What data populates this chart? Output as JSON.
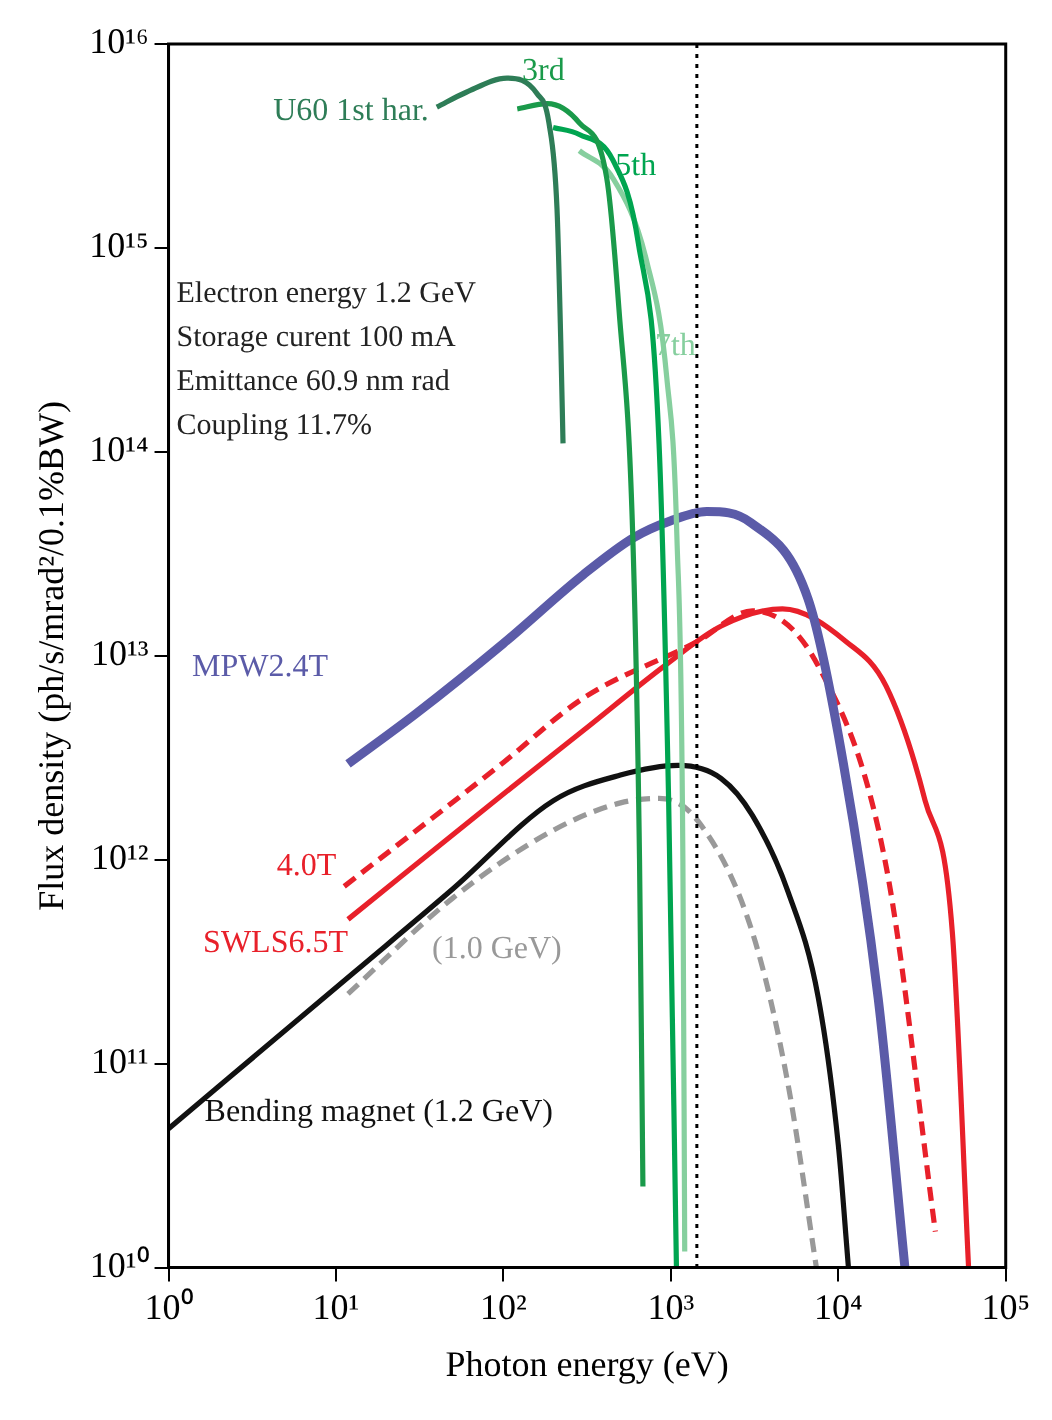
{
  "chart_data": {
    "type": "line",
    "xlabel": "Photon energy (eV)",
    "ylabel": "Flux density (ph/s/mrad²/0.1%BW)",
    "log": "xy",
    "grid": false,
    "legend": false,
    "marker": "none",
    "xlim": [
      1,
      100000
    ],
    "ylim": [
      10000000000.0,
      1e+16
    ],
    "xticks": [
      {
        "value": 1,
        "label": "10⁰"
      },
      {
        "value": 10,
        "label": "10¹"
      },
      {
        "value": 100,
        "label": "10²"
      },
      {
        "value": 1000,
        "label": "10³"
      },
      {
        "value": 10000,
        "label": "10⁴"
      },
      {
        "value": 100000,
        "label": "10⁵"
      }
    ],
    "yticks": [
      {
        "value": 10000000000.0,
        "label": "10¹⁰"
      },
      {
        "value": 100000000000.0,
        "label": "10¹¹"
      },
      {
        "value": 1000000000000.0,
        "label": "10¹²"
      },
      {
        "value": 10000000000000.0,
        "label": "10¹³"
      },
      {
        "value": 100000000000000.0,
        "label": "10¹⁴"
      },
      {
        "value": 1000000000000000.0,
        "label": "10¹⁵"
      },
      {
        "value": 1e+16,
        "label": "10¹⁶"
      }
    ],
    "ref_lines": [
      {
        "axis": "x",
        "value": 1430,
        "color": "#000000",
        "line_style": "dotted"
      }
    ],
    "annotations": [
      "Electron energy 1.2 GeV",
      "Storage curent 100 mA",
      "Emittance 60.9 nm rad",
      "Coupling 11.7%"
    ],
    "series": [
      {
        "name": "U60 1st har.",
        "color": "#2e7d57",
        "line_style": "solid",
        "x": [
          40,
          60,
          105,
          159,
          187,
          209,
          220,
          227
        ],
        "values": [
          4900000000000000.0,
          5800000000000000.0,
          6800000000000000.0,
          5700000000000000.0,
          4100000000000000.0,
          1550000000000000.0,
          350000000000000.0,
          110000000000000.0
        ]
      },
      {
        "name": "3rd",
        "color": "#1a9a4a",
        "line_style": "solid",
        "x": [
          121,
          183,
          284,
          414,
          490,
          592,
          650,
          681
        ],
        "values": [
          4800000000000000.0,
          5100000000000000.0,
          4100000000000000.0,
          2200000000000000.0,
          500000000000000.0,
          39000000000000.0,
          1000000000000.0,
          25000000000.0
        ]
      },
      {
        "name": "5th",
        "color": "#00a550",
        "line_style": "solid",
        "x": [
          198,
          284,
          450,
          640,
          850,
          970,
          1080
        ],
        "values": [
          3900000000000000.0,
          3600000000000000.0,
          2700000000000000.0,
          1050000000000000.0,
          110000000000000.0,
          1950000000000.0,
          10000000000.0
        ]
      },
      {
        "name": "7th",
        "color": "#86cf9e",
        "line_style": "solid",
        "x": [
          284,
          450,
          720,
          946,
          1086,
          1180,
          1210
        ],
        "values": [
          3000000000000000.0,
          2200000000000000.0,
          850000000000000.0,
          230000000000000.0,
          39000000000000.0,
          1000000000000.0,
          12000000000.0
        ]
      },
      {
        "name": "MPW2.4T",
        "color": "#5b5ba8",
        "line_style": "solid",
        "x": [
          11.8,
          30,
          100,
          300,
          600,
          1000,
          1640,
          3000,
          6600,
          10000,
          17300,
          25000
        ],
        "values": [
          2950000000000.0,
          5200000000000.0,
          11500000000000.0,
          25000000000000.0,
          38000000000000.0,
          46000000000000.0,
          51000000000000.0,
          45000000000000.0,
          19000000000000.0,
          4100000000000.0,
          210000000000.0,
          10000000000.0
        ]
      },
      {
        "name": "4.0T",
        "color": "#e8202a",
        "line_style": "dashed",
        "x": [
          11.2,
          100,
          300,
          1430,
          3070,
          7600,
          19300,
          38000
        ],
        "values": [
          740000000000.0,
          3000000000000.0,
          6200000000000.0,
          11700000000000.0,
          16600000000000.0,
          8900000000000.0,
          930000000000.0,
          15000000000.0
        ]
      },
      {
        "name": "SWLS6.5T",
        "color": "#e8202a",
        "line_style": "solid",
        "x": [
          11.8,
          100,
          300,
          946,
          2000,
          4640,
          11200,
          19300,
          33000,
          48000,
          60000
        ],
        "values": [
          510000000000.0,
          2100000000000.0,
          4300000000000.0,
          9100000000000.0,
          14000000000000.0,
          17000000000000.0,
          11700000000000.0,
          7100000000000.0,
          1950000000000.0,
          440000000000.0,
          10000000000.0
        ]
      },
      {
        "name": "Bending magnet (1.2 GeV)",
        "color": "#111111",
        "line_style": "solid",
        "x": [
          1,
          12.8,
          50,
          199,
          500,
          1110,
          2000,
          3070,
          5000,
          7600,
          10000,
          11500
        ],
        "values": [
          48000000000.0,
          280000000000.0,
          720000000000.0,
          1950000000000.0,
          2600000000000.0,
          2900000000000.0,
          2500000000000.0,
          1650000000000.0,
          700000000000.0,
          210000000000.0,
          40000000000.0,
          10000000000.0
        ]
      },
      {
        "name": "(1.0 GeV)",
        "color": "#999999",
        "line_style": "dashed",
        "x": [
          11.8,
          50,
          200,
          500,
          850,
          1450,
          3070,
          5000,
          7400
        ],
        "values": [
          220000000000.0,
          650000000000.0,
          1400000000000.0,
          1900000000000.0,
          2000000000000.0,
          1550000000000.0,
          440000000000.0,
          80000000000.0,
          10000000000.0
        ]
      }
    ]
  }
}
